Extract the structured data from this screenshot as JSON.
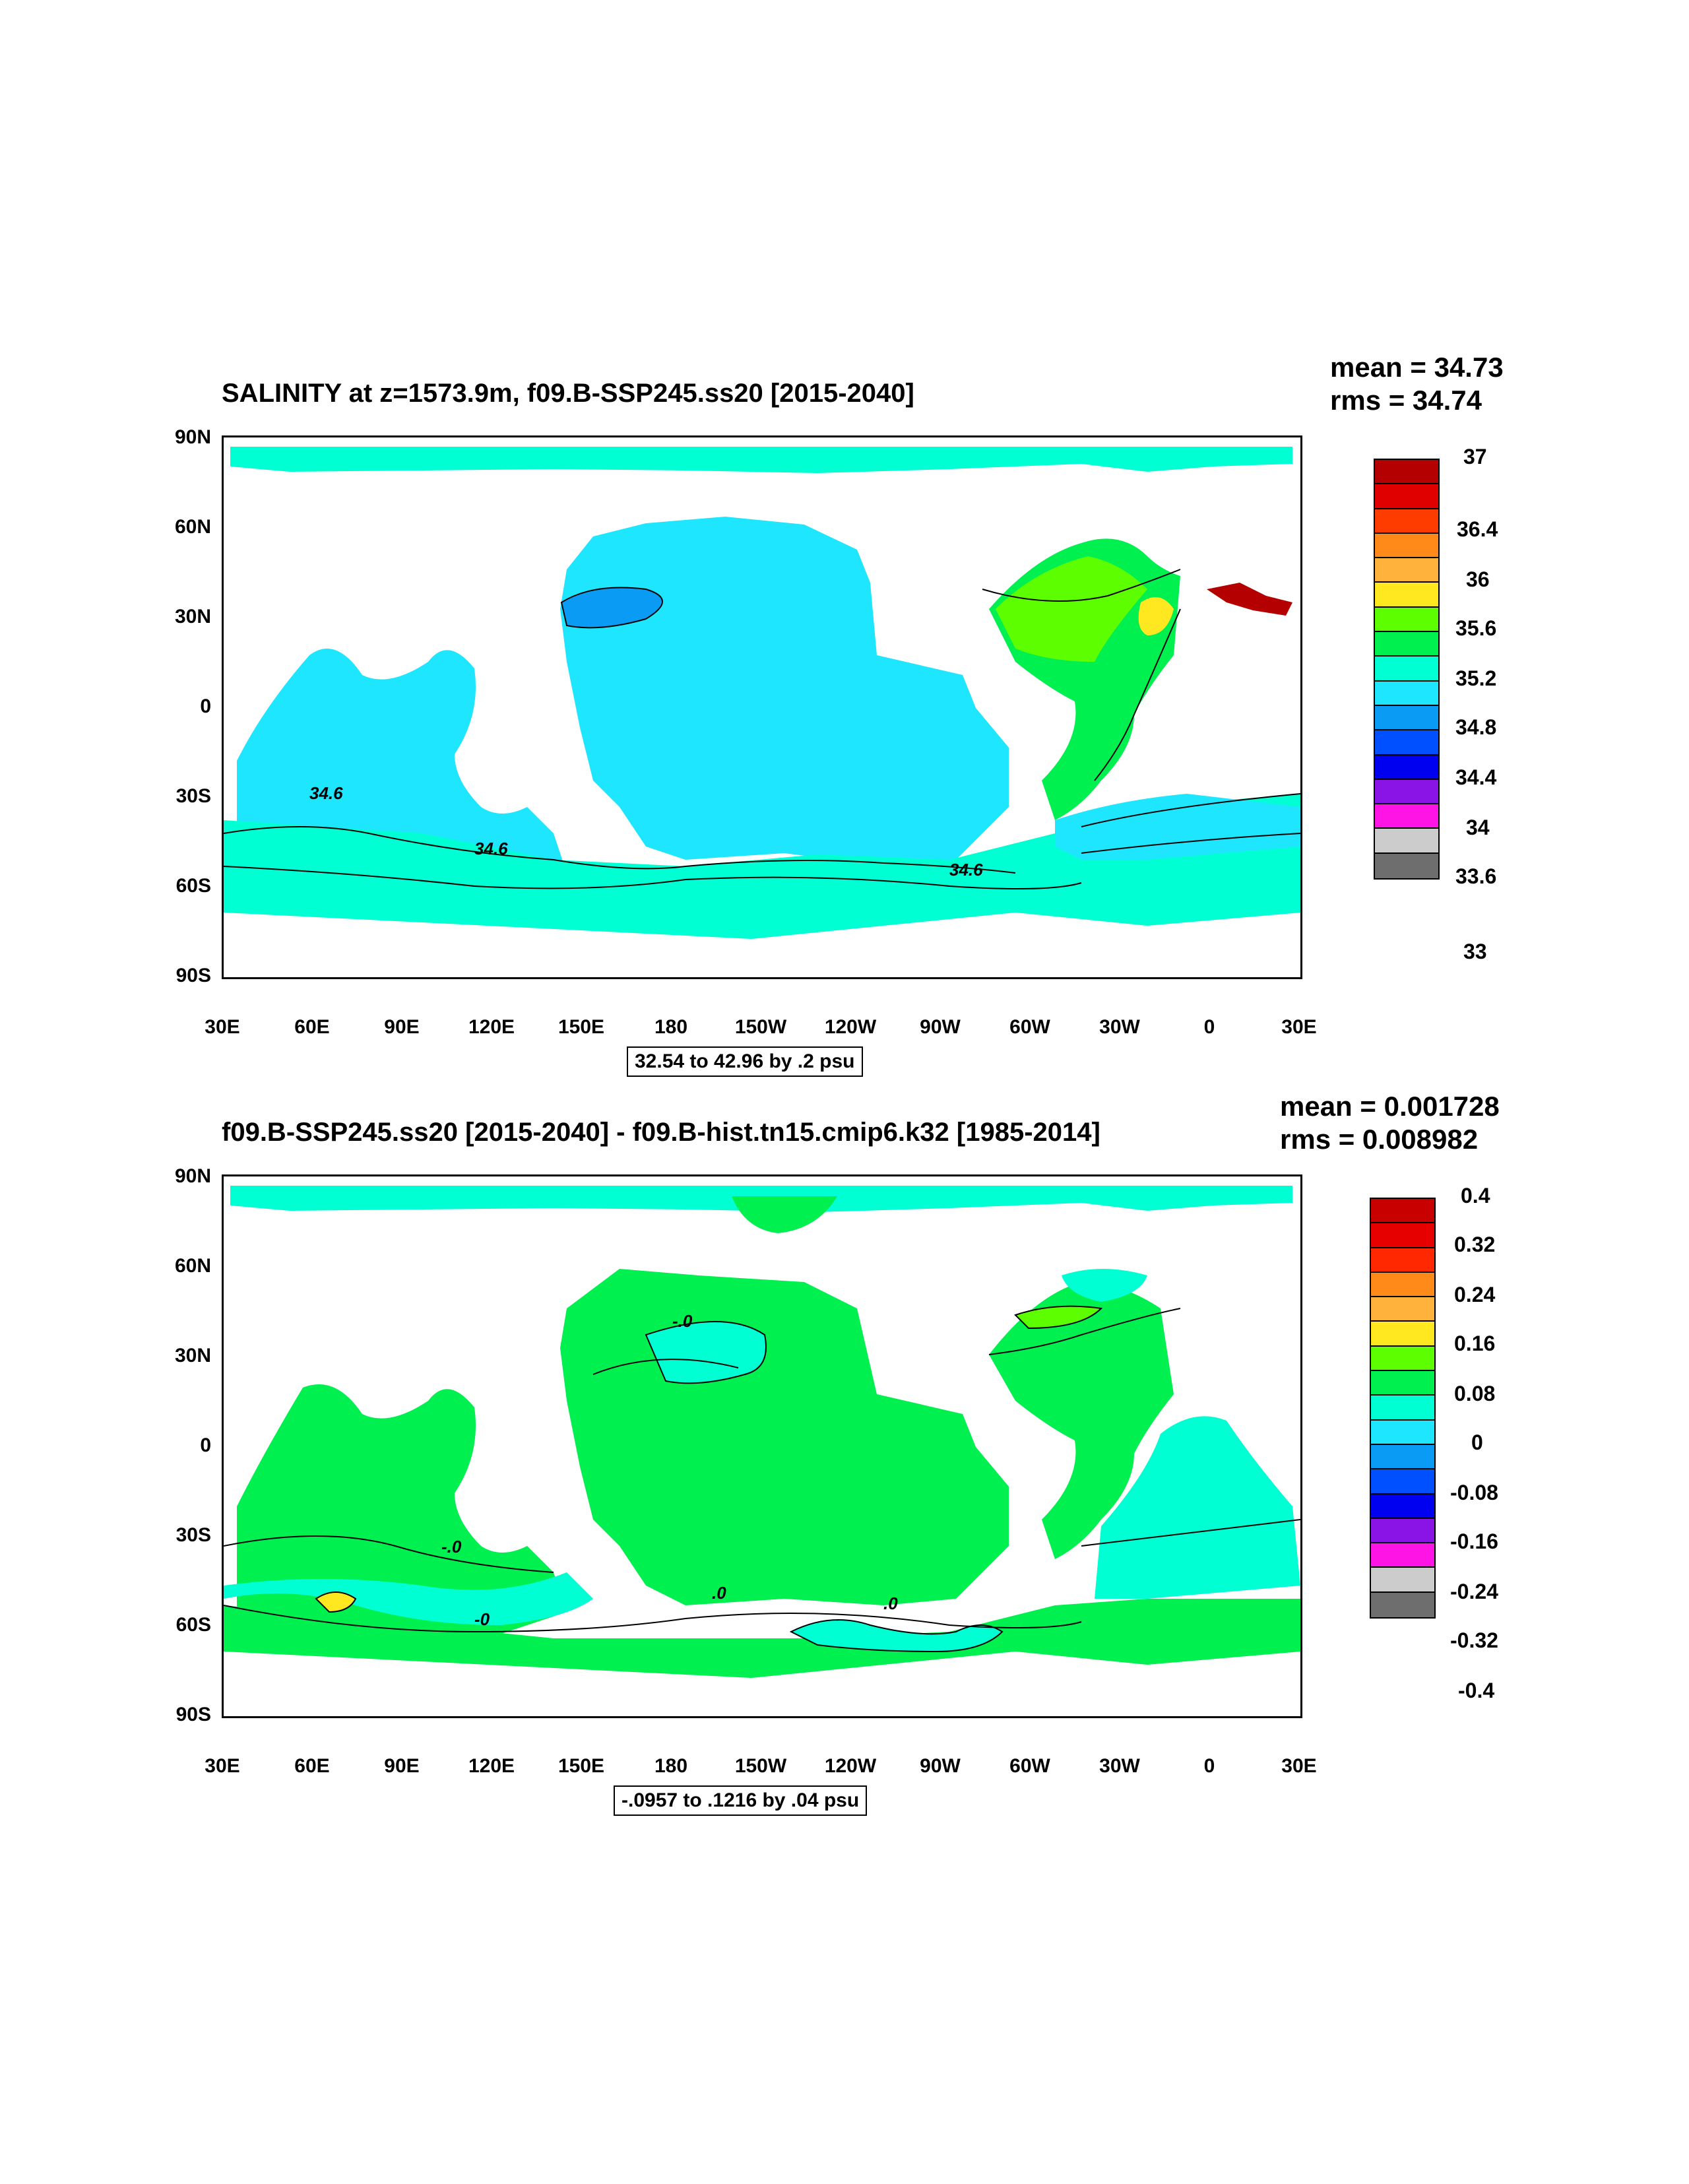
{
  "panels": [
    {
      "title": "SALINITY at z=1573.9m, f09.B-SSP245.ss20 [2015-2040]",
      "mean": "mean = 34.73",
      "rms": "rms = 34.74",
      "range_label": "32.54 to 42.96 by .2 psu",
      "lat_labels": [
        "90N",
        "60N",
        "30N",
        "0",
        "30S",
        "60S",
        "90S"
      ],
      "lon_labels": [
        "30E",
        "60E",
        "90E",
        "120E",
        "150E",
        "180",
        "150W",
        "120W",
        "90W",
        "60W",
        "30W",
        "0",
        "30E"
      ],
      "colorbar": {
        "colors": [
          "#b40000",
          "#e00000",
          "#ff3c00",
          "#ff8a1a",
          "#ffb33d",
          "#ffe81f",
          "#5dff00",
          "#00f050",
          "#00ffd2",
          "#1ee6ff",
          "#0a9bf5",
          "#0050ff",
          "#0000f0",
          "#8a14e6",
          "#ff14e6",
          "#cccccc",
          "#6e6e6e"
        ],
        "labels": [
          "37",
          "36.4",
          "36",
          "35.6",
          "35.2",
          "34.8",
          "34.4",
          "34",
          "33.6",
          "33"
        ]
      },
      "contour_labels": [
        "34.6",
        "34.6",
        "34.6"
      ]
    },
    {
      "title": "f09.B-SSP245.ss20 [2015-2040] - f09.B-hist.tn15.cmip6.k32 [1985-2014]",
      "mean": "mean = 0.001728",
      "rms": "rms = 0.008982",
      "range_label": "-.0957 to .1216 by .04 psu",
      "lat_labels": [
        "90N",
        "60N",
        "30N",
        "0",
        "30S",
        "60S",
        "90S"
      ],
      "lon_labels": [
        "30E",
        "60E",
        "90E",
        "120E",
        "150E",
        "180",
        "150W",
        "120W",
        "90W",
        "60W",
        "30W",
        "0",
        "30E"
      ],
      "colorbar": {
        "colors": [
          "#c80000",
          "#e60000",
          "#ff2800",
          "#ff8a1a",
          "#ffb33d",
          "#ffe81f",
          "#5dff00",
          "#00f050",
          "#00ffd2",
          "#1ee6ff",
          "#0a9bf5",
          "#0050ff",
          "#0000f0",
          "#8a14e6",
          "#ff14e6",
          "#cccccc",
          "#6e6e6e"
        ],
        "labels": [
          "0.4",
          "0.32",
          "0.24",
          "0.16",
          "0.08",
          "0",
          "-0.08",
          "-0.16",
          "-0.24",
          "-0.32",
          "-0.4"
        ]
      },
      "contour_labels": [
        "-.0",
        "-.0",
        "-0",
        ".0",
        ".0"
      ]
    }
  ]
}
